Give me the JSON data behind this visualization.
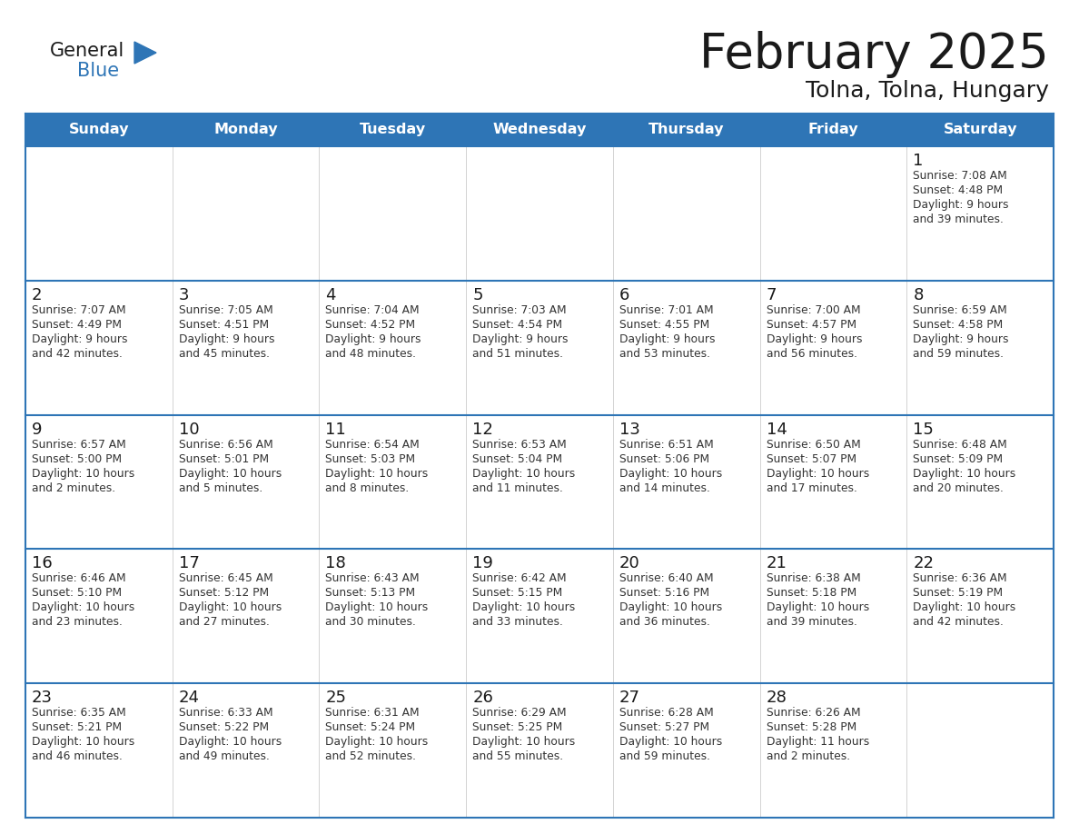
{
  "title": "February 2025",
  "subtitle": "Tolna, Tolna, Hungary",
  "header_bg": "#2E75B6",
  "header_text_color": "#FFFFFF",
  "row_border_color": "#2E75B6",
  "cell_alt_bg": "#f0f0f0",
  "cell_bg": "#ffffff",
  "day_number_color": "#1a1a1a",
  "info_text_color": "#333333",
  "bg_color": "#FFFFFF",
  "days_of_week": [
    "Sunday",
    "Monday",
    "Tuesday",
    "Wednesday",
    "Thursday",
    "Friday",
    "Saturday"
  ],
  "logo_color1": "#1a1a1a",
  "logo_color2": "#2E75B6",
  "calendar_data": [
    [
      null,
      null,
      null,
      null,
      null,
      null,
      {
        "day": "1",
        "sunrise": "7:08 AM",
        "sunset": "4:48 PM",
        "daylight": "9 hours\nand 39 minutes."
      }
    ],
    [
      {
        "day": "2",
        "sunrise": "7:07 AM",
        "sunset": "4:49 PM",
        "daylight": "9 hours\nand 42 minutes."
      },
      {
        "day": "3",
        "sunrise": "7:05 AM",
        "sunset": "4:51 PM",
        "daylight": "9 hours\nand 45 minutes."
      },
      {
        "day": "4",
        "sunrise": "7:04 AM",
        "sunset": "4:52 PM",
        "daylight": "9 hours\nand 48 minutes."
      },
      {
        "day": "5",
        "sunrise": "7:03 AM",
        "sunset": "4:54 PM",
        "daylight": "9 hours\nand 51 minutes."
      },
      {
        "day": "6",
        "sunrise": "7:01 AM",
        "sunset": "4:55 PM",
        "daylight": "9 hours\nand 53 minutes."
      },
      {
        "day": "7",
        "sunrise": "7:00 AM",
        "sunset": "4:57 PM",
        "daylight": "9 hours\nand 56 minutes."
      },
      {
        "day": "8",
        "sunrise": "6:59 AM",
        "sunset": "4:58 PM",
        "daylight": "9 hours\nand 59 minutes."
      }
    ],
    [
      {
        "day": "9",
        "sunrise": "6:57 AM",
        "sunset": "5:00 PM",
        "daylight": "10 hours\nand 2 minutes."
      },
      {
        "day": "10",
        "sunrise": "6:56 AM",
        "sunset": "5:01 PM",
        "daylight": "10 hours\nand 5 minutes."
      },
      {
        "day": "11",
        "sunrise": "6:54 AM",
        "sunset": "5:03 PM",
        "daylight": "10 hours\nand 8 minutes."
      },
      {
        "day": "12",
        "sunrise": "6:53 AM",
        "sunset": "5:04 PM",
        "daylight": "10 hours\nand 11 minutes."
      },
      {
        "day": "13",
        "sunrise": "6:51 AM",
        "sunset": "5:06 PM",
        "daylight": "10 hours\nand 14 minutes."
      },
      {
        "day": "14",
        "sunrise": "6:50 AM",
        "sunset": "5:07 PM",
        "daylight": "10 hours\nand 17 minutes."
      },
      {
        "day": "15",
        "sunrise": "6:48 AM",
        "sunset": "5:09 PM",
        "daylight": "10 hours\nand 20 minutes."
      }
    ],
    [
      {
        "day": "16",
        "sunrise": "6:46 AM",
        "sunset": "5:10 PM",
        "daylight": "10 hours\nand 23 minutes."
      },
      {
        "day": "17",
        "sunrise": "6:45 AM",
        "sunset": "5:12 PM",
        "daylight": "10 hours\nand 27 minutes."
      },
      {
        "day": "18",
        "sunrise": "6:43 AM",
        "sunset": "5:13 PM",
        "daylight": "10 hours\nand 30 minutes."
      },
      {
        "day": "19",
        "sunrise": "6:42 AM",
        "sunset": "5:15 PM",
        "daylight": "10 hours\nand 33 minutes."
      },
      {
        "day": "20",
        "sunrise": "6:40 AM",
        "sunset": "5:16 PM",
        "daylight": "10 hours\nand 36 minutes."
      },
      {
        "day": "21",
        "sunrise": "6:38 AM",
        "sunset": "5:18 PM",
        "daylight": "10 hours\nand 39 minutes."
      },
      {
        "day": "22",
        "sunrise": "6:36 AM",
        "sunset": "5:19 PM",
        "daylight": "10 hours\nand 42 minutes."
      }
    ],
    [
      {
        "day": "23",
        "sunrise": "6:35 AM",
        "sunset": "5:21 PM",
        "daylight": "10 hours\nand 46 minutes."
      },
      {
        "day": "24",
        "sunrise": "6:33 AM",
        "sunset": "5:22 PM",
        "daylight": "10 hours\nand 49 minutes."
      },
      {
        "day": "25",
        "sunrise": "6:31 AM",
        "sunset": "5:24 PM",
        "daylight": "10 hours\nand 52 minutes."
      },
      {
        "day": "26",
        "sunrise": "6:29 AM",
        "sunset": "5:25 PM",
        "daylight": "10 hours\nand 55 minutes."
      },
      {
        "day": "27",
        "sunrise": "6:28 AM",
        "sunset": "5:27 PM",
        "daylight": "10 hours\nand 59 minutes."
      },
      {
        "day": "28",
        "sunrise": "6:26 AM",
        "sunset": "5:28 PM",
        "daylight": "11 hours\nand 2 minutes."
      },
      null
    ]
  ]
}
